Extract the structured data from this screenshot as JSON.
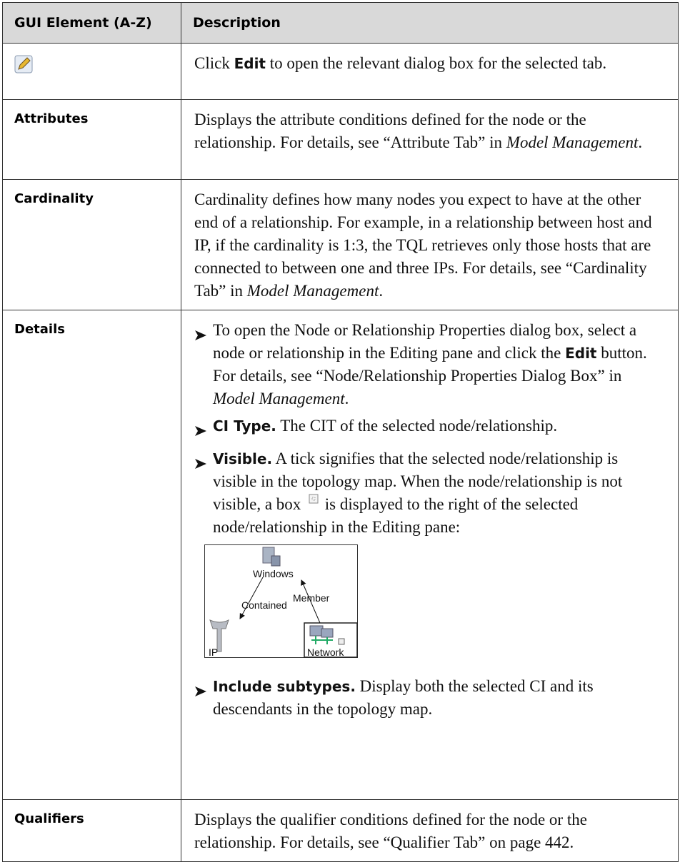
{
  "table": {
    "headers": [
      "GUI Element (A-Z)",
      "Description"
    ],
    "rows": [
      {
        "description": [
          {
            "text": [
              {
                "t": "Click "
              },
              {
                "b": "Edit"
              },
              {
                "t": " to open the relevant dialog box for the selected tab."
              }
            ]
          }
        ]
      },
      {
        "element": "Attributes",
        "description": [
          {
            "text": [
              {
                "t": "Displays the attribute conditions defined for the node or the relationship. For details, see “Attribute Tab” in "
              },
              {
                "i": "Model Management"
              },
              {
                "t": "."
              }
            ]
          }
        ]
      },
      {
        "element": "Cardinality",
        "description": [
          {
            "text": [
              {
                "t": "Cardinality defines how many nodes you expect to have at the other end of a relationship. For example, in a relationship between host and IP, if the cardinality is 1:3, the TQL retrieves only those hosts that are connected to between one and three IPs. For details, see “Cardinality Tab” in "
              },
              {
                "i": "Model Management"
              },
              {
                "t": "."
              }
            ]
          }
        ]
      },
      {
        "element": "Details",
        "description": [
          {
            "bullet": [
              {
                "t": "To open the Node or Relationship Properties dialog box, select a node or relationship in the Editing pane and click the "
              },
              {
                "b": "Edit"
              },
              {
                "t": " button. For details, see “Node/Relationship Properties Dialog Box” in "
              },
              {
                "i": "Model Management"
              },
              {
                "t": "."
              }
            ]
          },
          {
            "bullet": [
              {
                "b": "CI Type."
              },
              {
                "t": " The CIT of the selected node/relationship."
              }
            ]
          },
          {
            "bullet": [
              {
                "b": "Visible."
              },
              {
                "t": " A tick signifies that the selected node/relationship is visible in the topology map. When the node/relationship is not visible, a box"
              }
            ],
            "continued": [
              {
                "t": " is displayed to the right of the selected node/relationship in the Editing pane:"
              }
            ]
          },
          {
            "figure": {
              "windows": "Windows",
              "contained": "Contained",
              "member": "Member",
              "ip": "IP",
              "network": "Network"
            }
          },
          {
            "bullet": [
              {
                "b": "Include subtypes."
              },
              {
                "t": " Display both the selected CI and its descendants in the topology map."
              }
            ]
          }
        ]
      },
      {
        "element": "Qualifiers",
        "description": [
          {
            "text": [
              {
                "t": "Displays the qualifier conditions defined for the node or the relationship. For details, see “Qualifier Tab” on page 442."
              }
            ]
          }
        ]
      }
    ]
  }
}
